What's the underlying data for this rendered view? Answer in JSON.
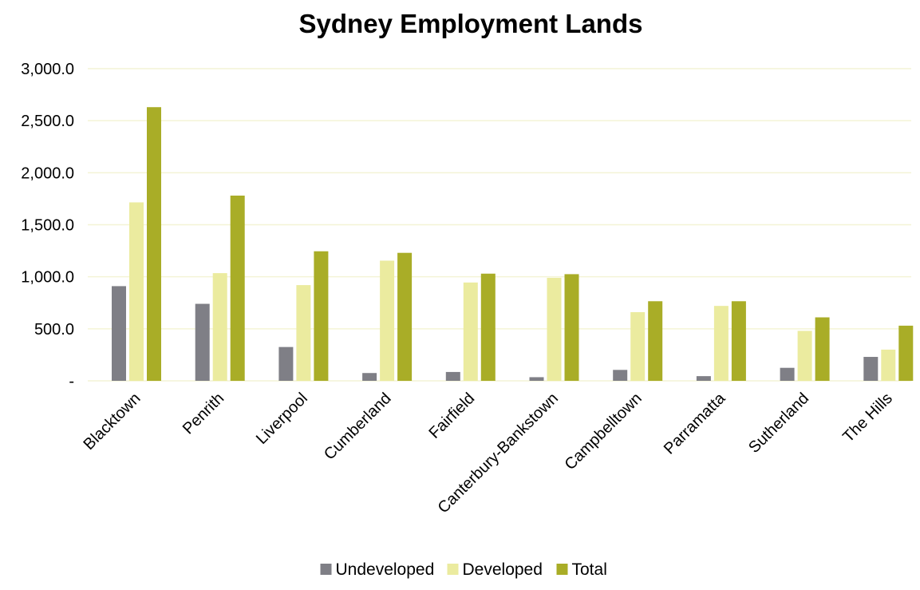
{
  "chart_data": {
    "type": "bar",
    "title": "Sydney Employment Lands",
    "xlabel": "",
    "ylabel": "",
    "ylim": [
      0,
      3000
    ],
    "yticks": [
      {
        "value": 0,
        "label": "-"
      },
      {
        "value": 500,
        "label": "500.0"
      },
      {
        "value": 1000,
        "label": "1,000.0"
      },
      {
        "value": 1500,
        "label": "1,500.0"
      },
      {
        "value": 2000,
        "label": "2,000.0"
      },
      {
        "value": 2500,
        "label": "2,500.0"
      },
      {
        "value": 3000,
        "label": "3,000.0"
      }
    ],
    "grid": true,
    "legend_position": "bottom",
    "categories": [
      "Blacktown",
      "Penrith",
      "Liverpool",
      "Cumberland",
      "Fairfield",
      "Canterbury-Bankstown",
      "Campbelltown",
      "Parramatta",
      "Sutherland",
      "The Hills"
    ],
    "series": [
      {
        "name": "Undeveloped",
        "color": "#7f7f86",
        "values": [
          910,
          740,
          325,
          75,
          85,
          35,
          105,
          45,
          125,
          230
        ]
      },
      {
        "name": "Developed",
        "color": "#ebeb9f",
        "values": [
          1715,
          1035,
          920,
          1155,
          945,
          990,
          660,
          720,
          480,
          300
        ]
      },
      {
        "name": "Total",
        "color": "#a9ad27",
        "values": [
          2630,
          1780,
          1245,
          1230,
          1030,
          1025,
          765,
          765,
          610,
          530
        ]
      }
    ],
    "gridline_color": "#f4f4d6"
  }
}
